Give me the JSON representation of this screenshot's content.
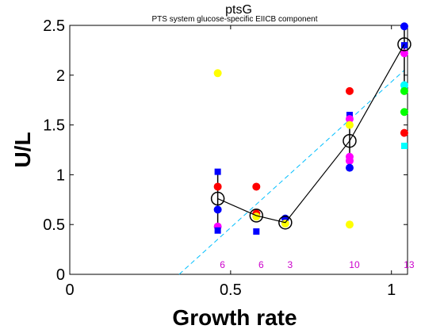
{
  "chart_data": {
    "type": "scatter",
    "title": "ptsG",
    "subtitle": "PTS system glucose-specific EIICB component",
    "xlabel": "Growth rate",
    "ylabel": "U/L",
    "xlim": [
      0,
      1.05
    ],
    "ylim": [
      0,
      2.5
    ],
    "xticks": [
      0,
      0.5,
      1
    ],
    "xtick_labels": [
      "0",
      "0.5",
      "1"
    ],
    "yticks": [
      0,
      0.5,
      1,
      1.5,
      2,
      2.5
    ],
    "ytick_labels": [
      "0",
      "0.5",
      "1",
      "1.5",
      "2",
      "2.5"
    ],
    "mean_line": {
      "x": [
        0.46,
        0.58,
        0.67,
        0.87,
        1.04
      ],
      "y": [
        0.76,
        0.59,
        0.52,
        1.34,
        2.31
      ]
    },
    "error_bars": [
      {
        "x": 0.46,
        "low": 0.44,
        "high": 1.03
      },
      {
        "x": 0.58,
        "low": 0.56,
        "high": 0.62
      },
      {
        "x": 0.67,
        "low": 0.49,
        "high": 0.56
      },
      {
        "x": 0.87,
        "low": 1.1,
        "high": 1.6
      },
      {
        "x": 1.04,
        "low": 1.85,
        "high": 2.49
      }
    ],
    "fit_line": {
      "x": [
        0.34,
        1.04
      ],
      "y": [
        0.0,
        2.05
      ]
    },
    "counts": [
      {
        "x": 0.46,
        "label": "6"
      },
      {
        "x": 0.58,
        "label": "6"
      },
      {
        "x": 0.67,
        "label": "3"
      },
      {
        "x": 0.87,
        "label": "10"
      },
      {
        "x": 1.04,
        "label": "13"
      }
    ],
    "points": [
      {
        "x": 0.46,
        "y": 2.02,
        "color": "#ffff00",
        "shape": "circle"
      },
      {
        "x": 0.46,
        "y": 1.03,
        "color": "#0000ff",
        "shape": "square"
      },
      {
        "x": 0.46,
        "y": 0.88,
        "color": "#ff0000",
        "shape": "circle"
      },
      {
        "x": 0.46,
        "y": 0.65,
        "color": "#0000ff",
        "shape": "circle"
      },
      {
        "x": 0.46,
        "y": 0.48,
        "color": "#ff00ff",
        "shape": "circle"
      },
      {
        "x": 0.46,
        "y": 0.44,
        "color": "#0000ff",
        "shape": "square"
      },
      {
        "x": 0.58,
        "y": 0.88,
        "color": "#ff0000",
        "shape": "circle"
      },
      {
        "x": 0.58,
        "y": 0.61,
        "color": "#ff0000",
        "shape": "circle"
      },
      {
        "x": 0.58,
        "y": 0.58,
        "color": "#ffff00",
        "shape": "circle"
      },
      {
        "x": 0.58,
        "y": 0.43,
        "color": "#0000ff",
        "shape": "square"
      },
      {
        "x": 0.67,
        "y": 0.56,
        "color": "#0000ff",
        "shape": "circle"
      },
      {
        "x": 0.67,
        "y": 0.51,
        "color": "#ffff00",
        "shape": "circle"
      },
      {
        "x": 0.87,
        "y": 1.84,
        "color": "#ff0000",
        "shape": "circle"
      },
      {
        "x": 0.87,
        "y": 1.6,
        "color": "#0000ff",
        "shape": "square"
      },
      {
        "x": 0.87,
        "y": 1.56,
        "color": "#ff00ff",
        "shape": "circle"
      },
      {
        "x": 0.87,
        "y": 1.5,
        "color": "#ffff00",
        "shape": "circle"
      },
      {
        "x": 0.87,
        "y": 1.18,
        "color": "#ff00ff",
        "shape": "circle"
      },
      {
        "x": 0.87,
        "y": 1.14,
        "color": "#ff00ff",
        "shape": "circle"
      },
      {
        "x": 0.87,
        "y": 1.07,
        "color": "#0000ff",
        "shape": "circle"
      },
      {
        "x": 0.87,
        "y": 0.5,
        "color": "#ffff00",
        "shape": "circle"
      },
      {
        "x": 1.04,
        "y": 2.49,
        "color": "#0000ff",
        "shape": "circle"
      },
      {
        "x": 1.04,
        "y": 2.3,
        "color": "#0000ff",
        "shape": "square"
      },
      {
        "x": 1.04,
        "y": 2.22,
        "color": "#ff00ff",
        "shape": "circle"
      },
      {
        "x": 1.04,
        "y": 1.9,
        "color": "#00ffff",
        "shape": "circle"
      },
      {
        "x": 1.04,
        "y": 1.86,
        "color": "#00ffff",
        "shape": "square"
      },
      {
        "x": 1.04,
        "y": 1.84,
        "color": "#00ff00",
        "shape": "circle"
      },
      {
        "x": 1.04,
        "y": 1.63,
        "color": "#00ff00",
        "shape": "circle"
      },
      {
        "x": 1.04,
        "y": 1.42,
        "color": "#ff0000",
        "shape": "circle"
      },
      {
        "x": 1.04,
        "y": 1.29,
        "color": "#00ffff",
        "shape": "square"
      }
    ],
    "colors": {
      "mean_line": "#000000",
      "fit_line": "#00bfff",
      "count_text": "#cc00cc",
      "axis": "#000000"
    }
  }
}
